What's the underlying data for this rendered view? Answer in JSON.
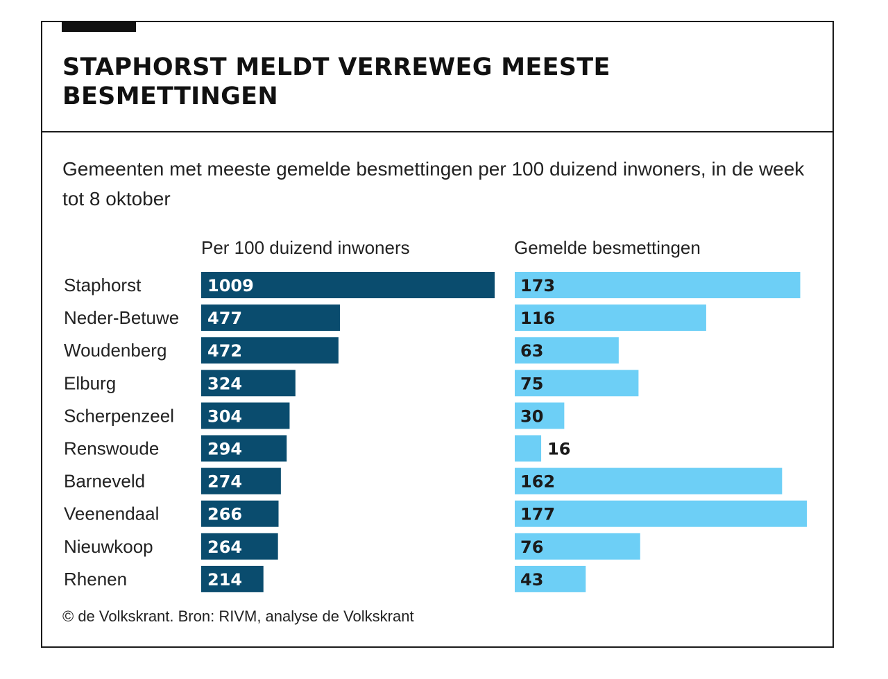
{
  "title": "STAPHORST MELDT VERREWEG MEESTE BESMETTINGEN",
  "subtitle": "Gemeenten met meeste gemelde besmettingen per 100 duizend inwoners, in de week tot 8 oktober",
  "source": "© de Volkskrant. Bron: RIVM, analyse de Volkskrant",
  "colors": {
    "dark_bar": "#0a4c6e",
    "light_bar": "#6dcff6",
    "text_on_dark": "#ffffff",
    "text_on_light": "#1a1a1a"
  },
  "chart_data": {
    "type": "bar",
    "orientation": "horizontal",
    "categories": [
      "Staphorst",
      "Neder-Betuwe",
      "Woudenberg",
      "Elburg",
      "Scherpenzeel",
      "Renswoude",
      "Barneveld",
      "Veenendaal",
      "Nieuwkoop",
      "Rhenen"
    ],
    "series": [
      {
        "name": "Per 100 duizend inwoners",
        "values": [
          1009,
          477,
          472,
          324,
          304,
          294,
          274,
          266,
          264,
          214
        ]
      },
      {
        "name": "Gemelde besmettingen",
        "values": [
          173,
          116,
          63,
          75,
          30,
          16,
          162,
          177,
          76,
          43
        ]
      }
    ],
    "grid": false,
    "legend": "column headers above each bar group"
  }
}
